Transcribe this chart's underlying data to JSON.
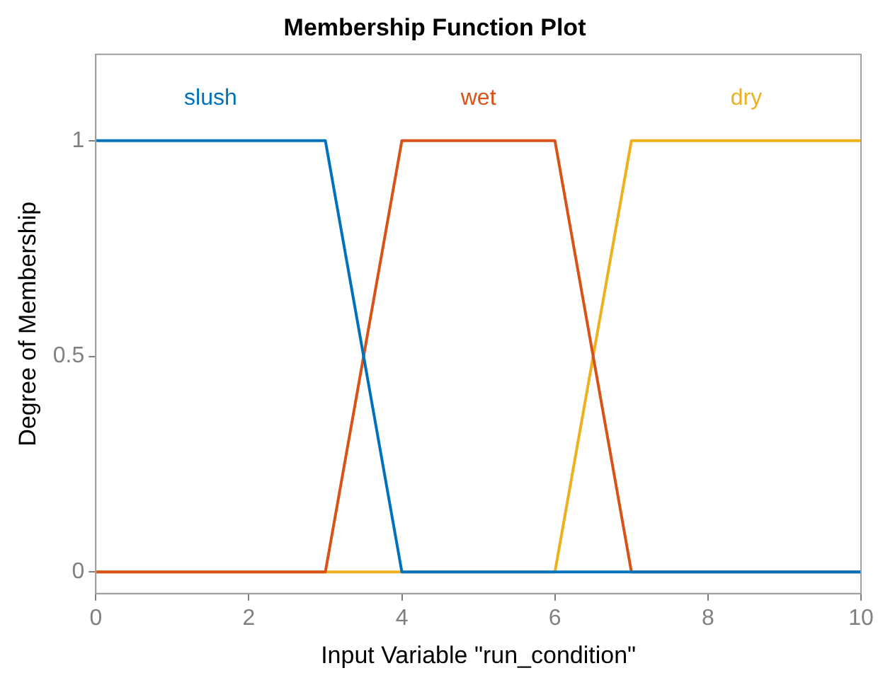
{
  "chart_data": {
    "type": "line",
    "title": "Membership Function Plot",
    "xlabel": "Input Variable \"run_condition\"",
    "ylabel": "Degree of Membership",
    "series": [
      {
        "name": "slush",
        "color": "#0072bd",
        "x": [
          0,
          3,
          4,
          10
        ],
        "values": [
          1,
          1,
          0,
          0
        ]
      },
      {
        "name": "wet",
        "color": "#d95319",
        "x": [
          0,
          3,
          4,
          6,
          7,
          10
        ],
        "values": [
          0,
          0,
          1,
          1,
          0,
          0
        ]
      },
      {
        "name": "dry",
        "color": "#edb120",
        "x": [
          0,
          6,
          7,
          10
        ],
        "values": [
          0,
          0,
          1,
          1
        ]
      }
    ],
    "xlim": [
      0,
      10
    ],
    "xticks": [
      0,
      2,
      4,
      6,
      8,
      10
    ],
    "ylim": [
      -0.05,
      1.2
    ],
    "yticks": [
      0,
      0.5,
      1
    ],
    "grid": false,
    "legend": false,
    "marker": "none",
    "line_style": "solid"
  }
}
